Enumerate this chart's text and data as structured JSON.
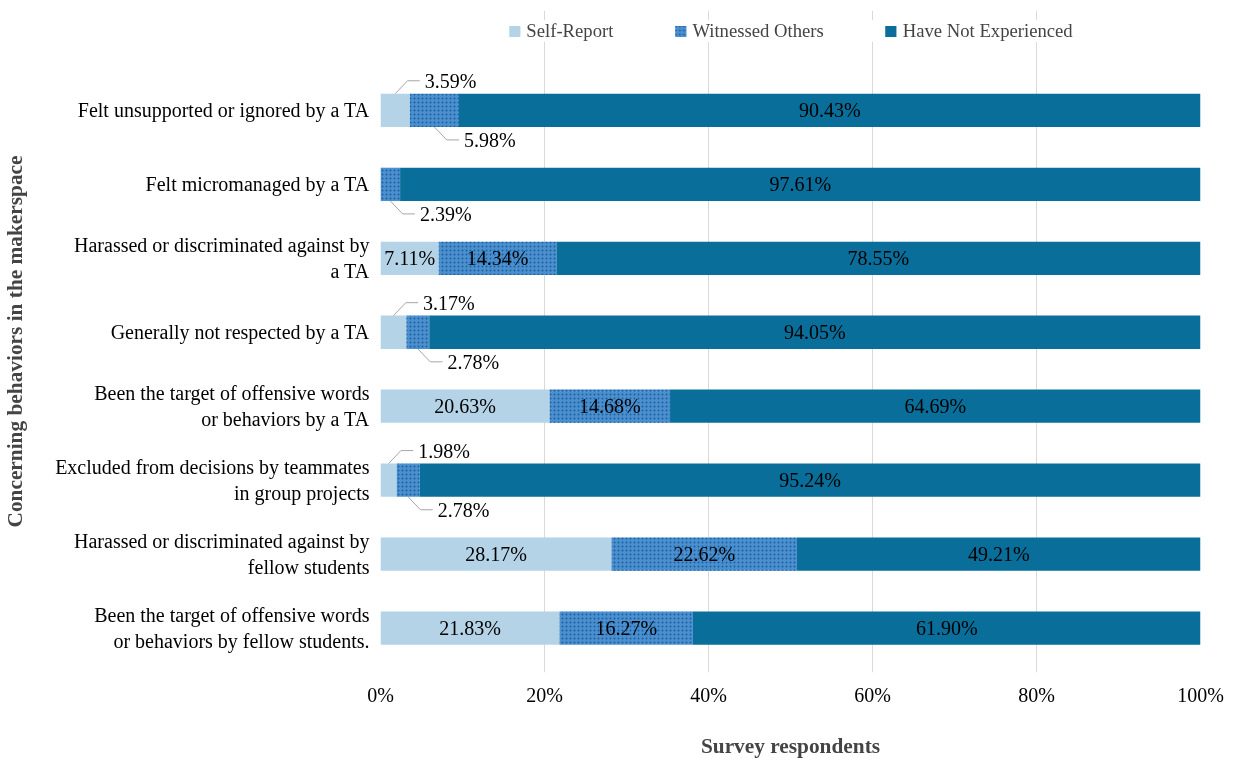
{
  "chart_data": {
    "type": "bar",
    "orientation": "horizontal",
    "stacked": true,
    "xlabel": "Survey respondents",
    "ylabel": "Concerning behaviors in the makerspace",
    "categories": [
      "Felt unsupported or ignored by a TA",
      "Felt micromanaged by a TA",
      "Harassed or discriminated against by a TA",
      "Generally not respected by a TA",
      "Been the target of offensive words or behaviors by a TA",
      "Excluded from decisions by teammates in group projects",
      "Harassed or discriminated against by fellow students",
      "Been the target of offensive words or behaviors by fellow students."
    ],
    "series": [
      {
        "name": "Self-Report",
        "color": "#b4d3e6",
        "values": [
          3.59,
          0,
          7.11,
          3.17,
          20.63,
          1.98,
          28.17,
          21.83
        ],
        "value_labels": [
          "3.59%",
          null,
          "7.11%",
          "3.17%",
          "20.63%",
          "1.98%",
          "28.17%",
          "21.83%"
        ]
      },
      {
        "name": "Witnessed Others",
        "color": "#4a8fd0",
        "values": [
          5.98,
          2.39,
          14.34,
          2.78,
          14.68,
          2.78,
          22.62,
          16.27
        ],
        "value_labels": [
          "5.98%",
          "2.39%",
          "14.34%",
          "2.78%",
          "14.68%",
          "2.78%",
          "22.62%",
          "16.27%"
        ]
      },
      {
        "name": "Have Not Experienced",
        "color": "#0a6e9a",
        "values": [
          90.43,
          97.61,
          78.55,
          94.05,
          64.69,
          95.24,
          49.21,
          61.9
        ],
        "value_labels": [
          "90.43%",
          "97.61%",
          "78.55%",
          "94.05%",
          "64.69%",
          "95.24%",
          "49.21%",
          "61.90%"
        ]
      }
    ],
    "xlim": [
      0,
      100
    ],
    "xticks": [
      {
        "value": 0,
        "label": "0%"
      },
      {
        "value": 20,
        "label": "20%"
      },
      {
        "value": 40,
        "label": "40%"
      },
      {
        "value": 60,
        "label": "60%"
      },
      {
        "value": 80,
        "label": "80%"
      },
      {
        "value": 100,
        "label": "100%"
      }
    ],
    "grid": "x",
    "legend": "top"
  }
}
